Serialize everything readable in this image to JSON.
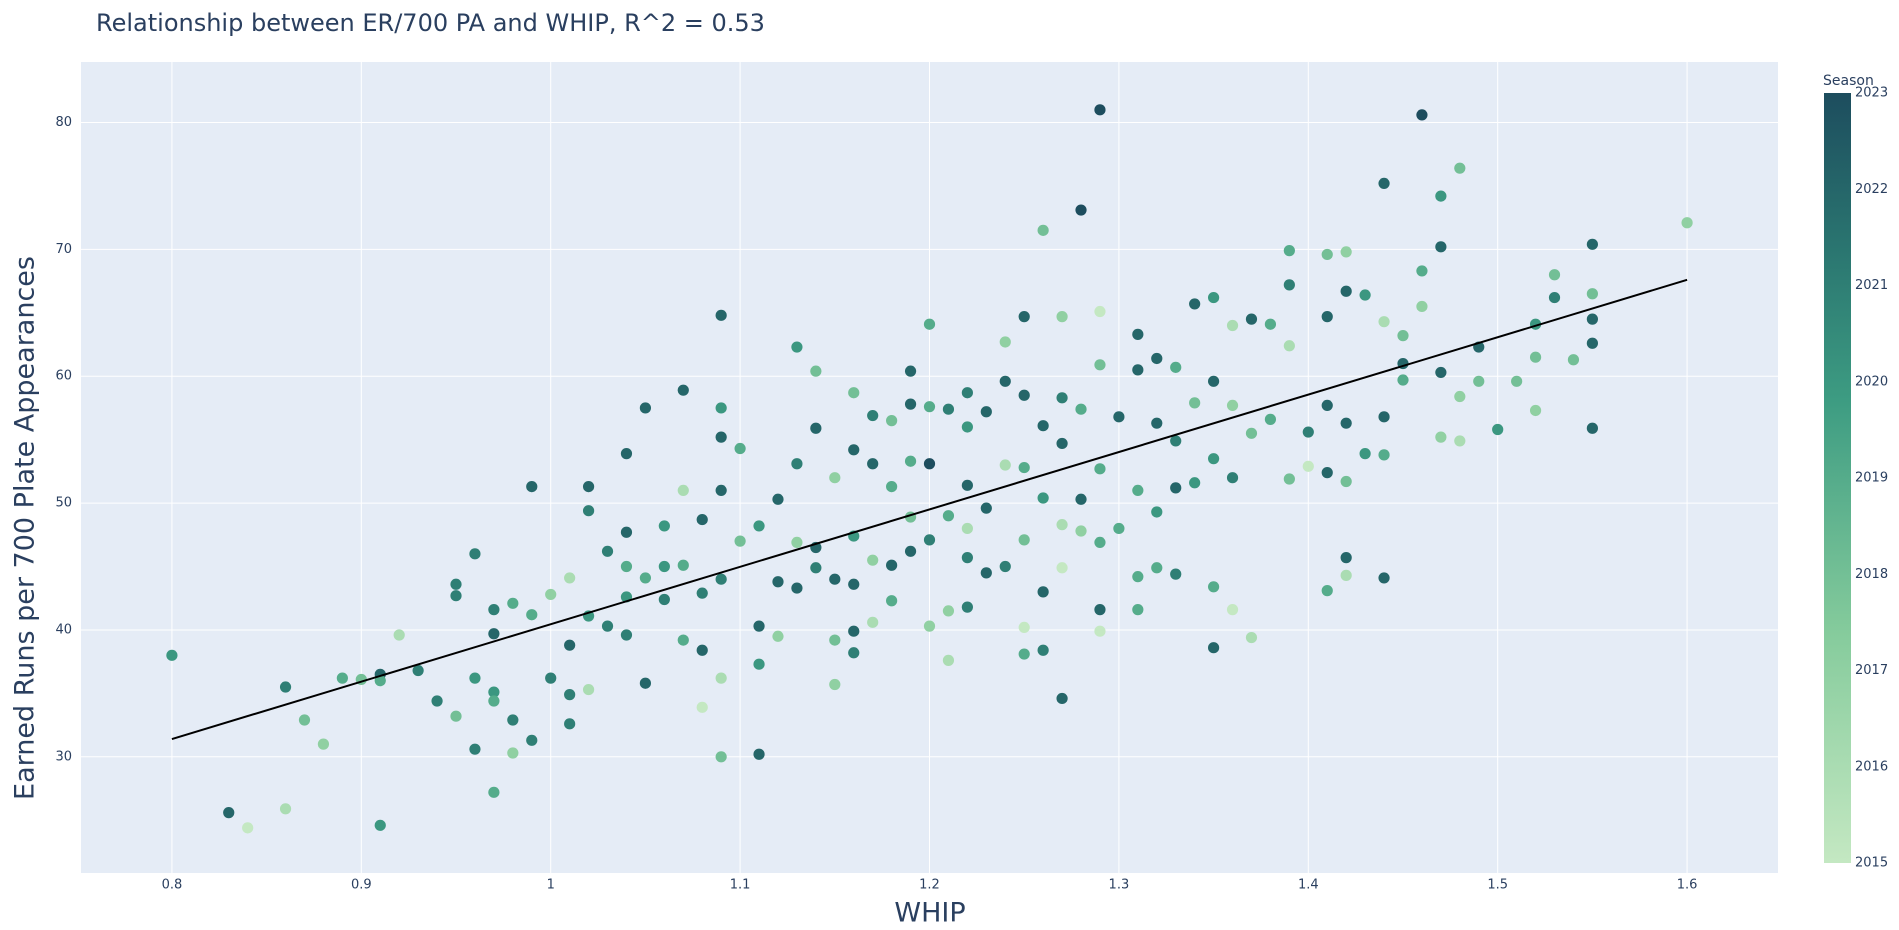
{
  "chart_data": {
    "type": "scatter",
    "title": "Relationship between ER/700 PA and WHIP, R^2 = 0.53",
    "x_label": "WHIP",
    "y_label": "Earned Runs per 700 Plate Appearances",
    "xlim": [
      0.752,
      1.648
    ],
    "ylim": [
      20.84,
      84.77
    ],
    "xticks": [
      0.8,
      0.9,
      1,
      1.1,
      1.2,
      1.3,
      1.4,
      1.5,
      1.6
    ],
    "yticks": [
      30,
      40,
      50,
      60,
      70,
      80
    ],
    "plot_bgcolor": "#e5ecf6",
    "colorbar": {
      "title": "Season",
      "lim": [
        2015,
        2023
      ],
      "ticks": [
        2015,
        2016,
        2017,
        2018,
        2019,
        2020,
        2021,
        2022,
        2023
      ],
      "colorscale": [
        [
          0,
          "#c4e8c2"
        ],
        [
          0.3,
          "#85cb9c"
        ],
        [
          0.6,
          "#3d9c82"
        ],
        [
          0.8,
          "#2a7570"
        ],
        [
          1,
          "#1d4d5e"
        ]
      ]
    },
    "trendline": {
      "x": [
        0.8,
        1.6
      ],
      "y": [
        31.4,
        67.6
      ],
      "color": "#000000"
    },
    "points": [
      [
        0.8,
        38.0,
        2020
      ],
      [
        0.83,
        25.6,
        2022
      ],
      [
        0.84,
        24.4,
        2015
      ],
      [
        0.86,
        35.5,
        2021
      ],
      [
        0.86,
        25.9,
        2016
      ],
      [
        0.87,
        32.9,
        2018
      ],
      [
        0.88,
        31.0,
        2017
      ],
      [
        0.89,
        36.2,
        2019
      ],
      [
        0.9,
        36.1,
        2018
      ],
      [
        0.91,
        36.5,
        2022
      ],
      [
        0.91,
        36.0,
        2019
      ],
      [
        0.91,
        24.6,
        2020
      ],
      [
        0.92,
        39.6,
        2016
      ],
      [
        0.93,
        36.8,
        2021
      ],
      [
        0.94,
        34.4,
        2021
      ],
      [
        0.95,
        43.6,
        2021
      ],
      [
        0.95,
        42.7,
        2021
      ],
      [
        0.95,
        33.2,
        2018
      ],
      [
        0.96,
        46.0,
        2021
      ],
      [
        0.96,
        36.2,
        2020
      ],
      [
        0.96,
        30.6,
        2021
      ],
      [
        0.97,
        41.6,
        2021
      ],
      [
        0.97,
        39.7,
        2022
      ],
      [
        0.97,
        35.1,
        2020
      ],
      [
        0.97,
        34.4,
        2019
      ],
      [
        0.97,
        27.2,
        2019
      ],
      [
        0.98,
        42.1,
        2019
      ],
      [
        0.98,
        32.9,
        2021
      ],
      [
        0.98,
        30.3,
        2017
      ],
      [
        0.99,
        51.3,
        2022
      ],
      [
        0.99,
        41.2,
        2019
      ],
      [
        0.99,
        31.3,
        2021
      ],
      [
        1.0,
        42.8,
        2017
      ],
      [
        1.0,
        36.2,
        2021
      ],
      [
        1.01,
        38.8,
        2022
      ],
      [
        1.01,
        34.9,
        2021
      ],
      [
        1.01,
        32.6,
        2021
      ],
      [
        1.01,
        44.1,
        2016
      ],
      [
        1.02,
        51.3,
        2022
      ],
      [
        1.02,
        49.4,
        2021
      ],
      [
        1.02,
        41.1,
        2020
      ],
      [
        1.02,
        35.3,
        2016
      ],
      [
        1.03,
        46.2,
        2021
      ],
      [
        1.03,
        40.3,
        2021
      ],
      [
        1.04,
        53.9,
        2022
      ],
      [
        1.04,
        47.7,
        2022
      ],
      [
        1.04,
        45.0,
        2019
      ],
      [
        1.04,
        42.6,
        2020
      ],
      [
        1.04,
        39.6,
        2021
      ],
      [
        1.05,
        57.5,
        2022
      ],
      [
        1.05,
        44.1,
        2019
      ],
      [
        1.05,
        35.8,
        2022
      ],
      [
        1.06,
        48.2,
        2020
      ],
      [
        1.06,
        45.0,
        2020
      ],
      [
        1.06,
        42.4,
        2021
      ],
      [
        1.07,
        58.9,
        2022
      ],
      [
        1.07,
        51.0,
        2016
      ],
      [
        1.07,
        45.1,
        2019
      ],
      [
        1.07,
        39.2,
        2019
      ],
      [
        1.08,
        48.7,
        2022
      ],
      [
        1.08,
        42.9,
        2021
      ],
      [
        1.08,
        38.4,
        2022
      ],
      [
        1.08,
        33.9,
        2015
      ],
      [
        1.09,
        64.8,
        2022
      ],
      [
        1.09,
        57.5,
        2020
      ],
      [
        1.09,
        55.2,
        2022
      ],
      [
        1.09,
        51.0,
        2022
      ],
      [
        1.09,
        44.0,
        2021
      ],
      [
        1.09,
        36.2,
        2016
      ],
      [
        1.09,
        30.0,
        2018
      ],
      [
        1.1,
        54.3,
        2019
      ],
      [
        1.1,
        47.0,
        2018
      ],
      [
        1.11,
        48.2,
        2020
      ],
      [
        1.11,
        40.3,
        2022
      ],
      [
        1.11,
        37.3,
        2020
      ],
      [
        1.11,
        30.2,
        2022
      ],
      [
        1.12,
        50.3,
        2022
      ],
      [
        1.12,
        43.8,
        2022
      ],
      [
        1.12,
        39.5,
        2017
      ],
      [
        1.13,
        62.3,
        2020
      ],
      [
        1.13,
        53.1,
        2021
      ],
      [
        1.13,
        46.9,
        2017
      ],
      [
        1.13,
        43.3,
        2022
      ],
      [
        1.14,
        60.4,
        2018
      ],
      [
        1.14,
        55.9,
        2022
      ],
      [
        1.14,
        46.5,
        2022
      ],
      [
        1.14,
        44.9,
        2021
      ],
      [
        1.15,
        52.0,
        2017
      ],
      [
        1.15,
        44.0,
        2022
      ],
      [
        1.15,
        39.2,
        2018
      ],
      [
        1.15,
        35.7,
        2017
      ],
      [
        1.16,
        58.7,
        2018
      ],
      [
        1.16,
        54.2,
        2022
      ],
      [
        1.16,
        47.4,
        2020
      ],
      [
        1.16,
        43.6,
        2022
      ],
      [
        1.16,
        39.9,
        2022
      ],
      [
        1.16,
        38.2,
        2021
      ],
      [
        1.17,
        56.9,
        2021
      ],
      [
        1.17,
        53.1,
        2022
      ],
      [
        1.17,
        45.5,
        2017
      ],
      [
        1.17,
        40.6,
        2016
      ],
      [
        1.18,
        56.5,
        2018
      ],
      [
        1.18,
        51.3,
        2019
      ],
      [
        1.18,
        45.1,
        2022
      ],
      [
        1.18,
        42.3,
        2019
      ],
      [
        1.19,
        60.4,
        2022
      ],
      [
        1.19,
        57.8,
        2022
      ],
      [
        1.19,
        53.3,
        2019
      ],
      [
        1.19,
        48.9,
        2018
      ],
      [
        1.19,
        46.2,
        2022
      ],
      [
        1.2,
        64.1,
        2019
      ],
      [
        1.2,
        57.6,
        2019
      ],
      [
        1.2,
        53.1,
        2023
      ],
      [
        1.2,
        47.1,
        2021
      ],
      [
        1.2,
        40.3,
        2017
      ],
      [
        1.21,
        57.4,
        2021
      ],
      [
        1.21,
        49.0,
        2019
      ],
      [
        1.21,
        41.5,
        2017
      ],
      [
        1.21,
        37.6,
        2016
      ],
      [
        1.22,
        58.7,
        2021
      ],
      [
        1.22,
        56.0,
        2020
      ],
      [
        1.22,
        51.4,
        2022
      ],
      [
        1.22,
        48.0,
        2016
      ],
      [
        1.22,
        45.7,
        2021
      ],
      [
        1.22,
        41.8,
        2021
      ],
      [
        1.23,
        57.2,
        2022
      ],
      [
        1.23,
        49.6,
        2022
      ],
      [
        1.23,
        44.5,
        2022
      ],
      [
        1.24,
        62.7,
        2017
      ],
      [
        1.24,
        59.6,
        2022
      ],
      [
        1.24,
        53.0,
        2016
      ],
      [
        1.24,
        45.0,
        2021
      ],
      [
        1.25,
        64.7,
        2022
      ],
      [
        1.25,
        58.5,
        2022
      ],
      [
        1.25,
        52.8,
        2019
      ],
      [
        1.25,
        47.1,
        2018
      ],
      [
        1.25,
        40.2,
        2015
      ],
      [
        1.25,
        38.1,
        2019
      ],
      [
        1.26,
        71.5,
        2018
      ],
      [
        1.26,
        56.1,
        2022
      ],
      [
        1.26,
        50.4,
        2020
      ],
      [
        1.26,
        43.0,
        2022
      ],
      [
        1.26,
        38.4,
        2021
      ],
      [
        1.27,
        64.7,
        2017
      ],
      [
        1.27,
        58.3,
        2021
      ],
      [
        1.27,
        54.7,
        2022
      ],
      [
        1.27,
        48.3,
        2016
      ],
      [
        1.27,
        44.9,
        2015
      ],
      [
        1.27,
        34.6,
        2022
      ],
      [
        1.28,
        73.1,
        2023
      ],
      [
        1.28,
        57.4,
        2019
      ],
      [
        1.28,
        50.3,
        2022
      ],
      [
        1.28,
        47.8,
        2017
      ],
      [
        1.29,
        81.0,
        2023
      ],
      [
        1.29,
        65.1,
        2015
      ],
      [
        1.29,
        60.9,
        2018
      ],
      [
        1.29,
        52.7,
        2019
      ],
      [
        1.29,
        46.9,
        2019
      ],
      [
        1.29,
        41.6,
        2022
      ],
      [
        1.29,
        39.9,
        2015
      ],
      [
        1.3,
        56.8,
        2022
      ],
      [
        1.3,
        48.0,
        2019
      ],
      [
        1.31,
        63.3,
        2022
      ],
      [
        1.31,
        60.5,
        2022
      ],
      [
        1.31,
        51.0,
        2019
      ],
      [
        1.31,
        44.2,
        2019
      ],
      [
        1.31,
        41.6,
        2019
      ],
      [
        1.32,
        61.4,
        2022
      ],
      [
        1.32,
        56.3,
        2022
      ],
      [
        1.32,
        49.3,
        2020
      ],
      [
        1.32,
        44.9,
        2019
      ],
      [
        1.33,
        60.7,
        2019
      ],
      [
        1.33,
        54.9,
        2021
      ],
      [
        1.33,
        51.2,
        2022
      ],
      [
        1.33,
        44.4,
        2021
      ],
      [
        1.34,
        65.7,
        2022
      ],
      [
        1.34,
        57.9,
        2018
      ],
      [
        1.34,
        51.6,
        2020
      ],
      [
        1.35,
        66.2,
        2020
      ],
      [
        1.35,
        59.6,
        2022
      ],
      [
        1.35,
        53.5,
        2020
      ],
      [
        1.35,
        43.4,
        2019
      ],
      [
        1.35,
        38.6,
        2022
      ],
      [
        1.36,
        64.0,
        2016
      ],
      [
        1.36,
        57.7,
        2017
      ],
      [
        1.36,
        52.0,
        2021
      ],
      [
        1.36,
        41.6,
        2015
      ],
      [
        1.37,
        64.5,
        2022
      ],
      [
        1.37,
        55.5,
        2018
      ],
      [
        1.37,
        39.4,
        2016
      ],
      [
        1.38,
        64.1,
        2019
      ],
      [
        1.38,
        56.6,
        2019
      ],
      [
        1.39,
        69.9,
        2019
      ],
      [
        1.39,
        67.2,
        2021
      ],
      [
        1.39,
        62.4,
        2016
      ],
      [
        1.39,
        51.9,
        2018
      ],
      [
        1.4,
        55.6,
        2021
      ],
      [
        1.4,
        52.9,
        2015
      ],
      [
        1.41,
        69.6,
        2018
      ],
      [
        1.41,
        64.7,
        2022
      ],
      [
        1.41,
        57.7,
        2022
      ],
      [
        1.41,
        52.4,
        2022
      ],
      [
        1.41,
        43.1,
        2019
      ],
      [
        1.42,
        69.8,
        2017
      ],
      [
        1.42,
        66.7,
        2022
      ],
      [
        1.42,
        56.3,
        2022
      ],
      [
        1.42,
        51.7,
        2018
      ],
      [
        1.42,
        45.7,
        2022
      ],
      [
        1.42,
        44.3,
        2016
      ],
      [
        1.43,
        66.4,
        2020
      ],
      [
        1.43,
        53.9,
        2020
      ],
      [
        1.44,
        75.2,
        2022
      ],
      [
        1.44,
        64.3,
        2016
      ],
      [
        1.44,
        56.8,
        2022
      ],
      [
        1.44,
        53.8,
        2019
      ],
      [
        1.44,
        44.1,
        2022
      ],
      [
        1.45,
        63.2,
        2018
      ],
      [
        1.45,
        61.0,
        2022
      ],
      [
        1.45,
        59.7,
        2019
      ],
      [
        1.46,
        80.6,
        2023
      ],
      [
        1.46,
        68.3,
        2019
      ],
      [
        1.46,
        65.5,
        2017
      ],
      [
        1.47,
        74.2,
        2020
      ],
      [
        1.47,
        70.2,
        2022
      ],
      [
        1.47,
        60.3,
        2022
      ],
      [
        1.47,
        55.2,
        2017
      ],
      [
        1.48,
        76.4,
        2018
      ],
      [
        1.48,
        58.4,
        2017
      ],
      [
        1.48,
        54.9,
        2016
      ],
      [
        1.49,
        62.3,
        2022
      ],
      [
        1.49,
        59.6,
        2018
      ],
      [
        1.5,
        55.8,
        2020
      ],
      [
        1.51,
        59.6,
        2018
      ],
      [
        1.52,
        64.1,
        2020
      ],
      [
        1.52,
        61.5,
        2018
      ],
      [
        1.52,
        57.3,
        2017
      ],
      [
        1.53,
        68.0,
        2018
      ],
      [
        1.53,
        66.2,
        2021
      ],
      [
        1.54,
        61.3,
        2018
      ],
      [
        1.55,
        70.4,
        2022
      ],
      [
        1.55,
        66.5,
        2018
      ],
      [
        1.55,
        64.5,
        2022
      ],
      [
        1.55,
        62.6,
        2022
      ],
      [
        1.55,
        55.9,
        2022
      ],
      [
        1.6,
        72.1,
        2017
      ]
    ]
  }
}
